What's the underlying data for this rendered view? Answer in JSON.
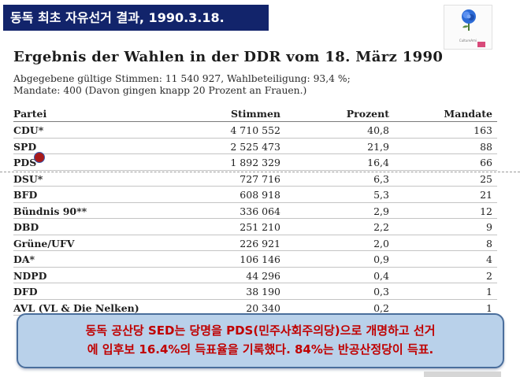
{
  "banner": {
    "text": "동독 최초 자유선거 결과, 1990.3.18."
  },
  "logo": {
    "caption": "CultureAmi"
  },
  "document": {
    "title": "Ergebnis der Wahlen in der DDR vom 18. März 1990",
    "info_line_1": "Abgegebene gültige Stimmen: 11 540 927, Wahlbeteiligung: 93,4 %;",
    "info_line_2": "Mandate: 400 (Davon gingen knapp 20 Prozent an Frauen.)"
  },
  "table": {
    "headers": {
      "party": "Partei",
      "votes": "Stimmen",
      "percent": "Prozent",
      "seats": "Mandate"
    },
    "rows": [
      {
        "party": "CDU*",
        "votes": "4 710 552",
        "percent": "40,8",
        "seats": "163"
      },
      {
        "party": "SPD",
        "votes": "2 525 473",
        "percent": "21,9",
        "seats": "88"
      },
      {
        "party": "PDS",
        "votes": "1 892 329",
        "percent": "16,4",
        "seats": "66"
      },
      {
        "party": "DSU*",
        "votes": "727 716",
        "percent": "6,3",
        "seats": "25"
      },
      {
        "party": "BFD",
        "votes": "608 918",
        "percent": "5,3",
        "seats": "21"
      },
      {
        "party": "Bündnis 90**",
        "votes": "336 064",
        "percent": "2,9",
        "seats": "12"
      },
      {
        "party": "DBD",
        "votes": "251 210",
        "percent": "2,2",
        "seats": "9"
      },
      {
        "party": "Grüne/UFV",
        "votes": "226 921",
        "percent": "2,0",
        "seats": "8"
      },
      {
        "party": "DA*",
        "votes": "106 146",
        "percent": "0,9",
        "seats": "4"
      },
      {
        "party": "NDPD",
        "votes": "44 296",
        "percent": "0,4",
        "seats": "2"
      },
      {
        "party": "DFD",
        "votes": "38 190",
        "percent": "0,3",
        "seats": "1"
      },
      {
        "party": "AVL (VL & Die Nelken)",
        "votes": "20 340",
        "percent": "0,2",
        "seats": "1"
      }
    ]
  },
  "callout": {
    "line_1": "동독 공산당 SED는 당명을 PDS(민주사회주의당)으로 개명하고 선거",
    "line_2": "에 입후보 16.4%의 득표율을 기록했다. 84%는 반공산정당이 득표."
  },
  "colors": {
    "banner_bg": "#12246b",
    "callout_bg": "#b9d1ea",
    "callout_text": "#c00000",
    "marker": "#a81a1a"
  },
  "icons": {
    "logo": "rose-icon"
  }
}
